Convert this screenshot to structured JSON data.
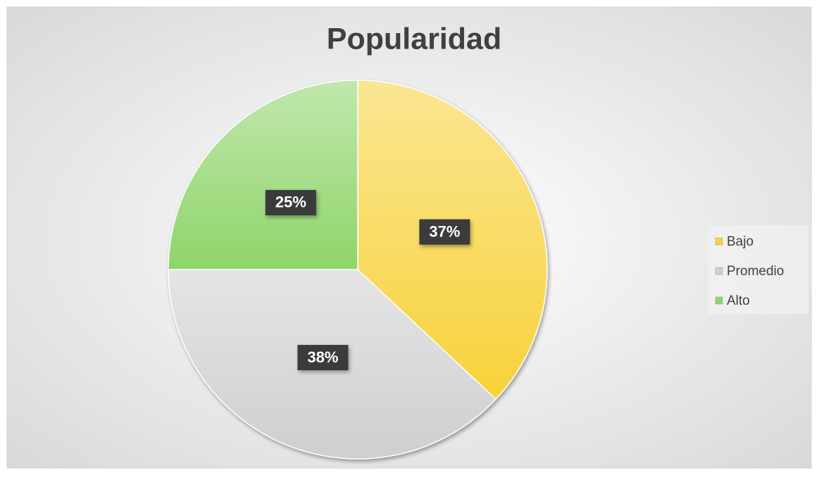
{
  "chart_data": {
    "type": "pie",
    "title": "Popularidad",
    "categories": [
      "Bajo",
      "Promedio",
      "Alto"
    ],
    "values": [
      37,
      38,
      25
    ],
    "value_labels": [
      "37%",
      "38%",
      "25%"
    ],
    "colors": [
      "#f7d23a",
      "#cfcfcf",
      "#8fd46a"
    ],
    "legend": "right"
  }
}
